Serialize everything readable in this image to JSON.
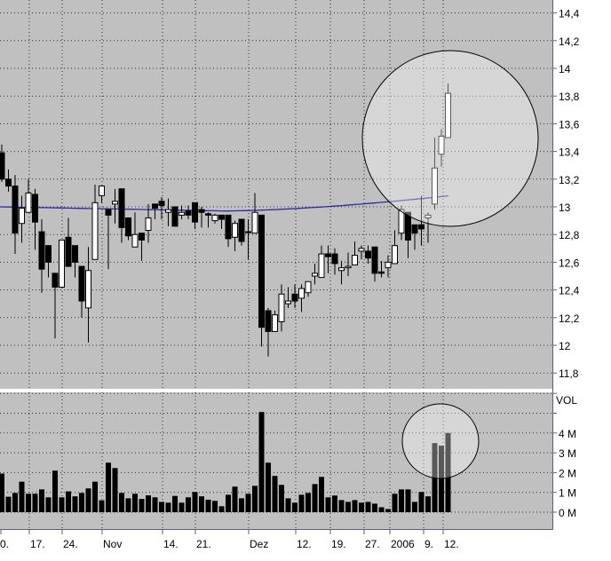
{
  "chart_data": [
    {
      "type": "candlestick",
      "price_axis": {
        "ticks": [
          "14,4",
          "14,2",
          "14",
          "13,8",
          "13,6",
          "13,4",
          "13,2",
          "13",
          "12,8",
          "12,6",
          "12,4",
          "12,2",
          "12",
          "11,8"
        ],
        "ylim": [
          11.75,
          14.5
        ]
      },
      "x_tick_labels": [
        "0.",
        "17.",
        "24.",
        "Nov",
        "14.",
        "21.",
        "Dez",
        "12.",
        "19.",
        "27.",
        "2006",
        "9.",
        "12."
      ],
      "grid": true,
      "colors": {
        "background": "#c0c0c0",
        "up": "#ffffff",
        "down": "#000000",
        "moving_average": "#2a2aa8",
        "grid": "#303030"
      },
      "ohlc": [
        [
          13.39,
          13.45,
          13.18,
          13.2
        ],
        [
          13.2,
          13.27,
          13.11,
          13.15
        ],
        [
          13.15,
          13.23,
          12.66,
          12.81
        ],
        [
          12.88,
          13.08,
          12.74,
          12.99
        ],
        [
          12.96,
          13.2,
          12.96,
          13.1
        ],
        [
          13.09,
          13.13,
          12.69,
          12.89
        ],
        [
          12.82,
          12.91,
          12.38,
          12.55
        ],
        [
          12.72,
          12.72,
          12.49,
          12.6
        ],
        [
          12.52,
          12.52,
          12.05,
          12.42
        ],
        [
          12.42,
          12.76,
          12.42,
          12.76
        ],
        [
          12.78,
          12.92,
          12.57,
          12.57
        ],
        [
          12.72,
          12.72,
          12.49,
          12.6
        ],
        [
          12.57,
          12.57,
          12.2,
          12.32
        ],
        [
          12.27,
          12.71,
          12.02,
          12.54
        ],
        [
          12.62,
          13.16,
          12.62,
          13.03
        ],
        [
          13.08,
          13.15,
          13.03,
          13.15
        ],
        [
          12.98,
          12.98,
          12.55,
          12.94
        ],
        [
          13.02,
          13.13,
          12.88,
          13.04
        ],
        [
          13.13,
          13.13,
          12.74,
          12.85
        ],
        [
          12.92,
          12.92,
          12.76,
          12.79
        ],
        [
          12.71,
          12.96,
          12.71,
          12.8
        ],
        [
          12.81,
          12.81,
          12.61,
          12.76
        ],
        [
          12.83,
          13.02,
          12.74,
          12.92
        ],
        [
          13.02,
          13.02,
          12.91,
          12.99
        ],
        [
          13.04,
          13.07,
          12.91,
          13.01
        ],
        [
          12.96,
          13.06,
          12.86,
          12.98
        ],
        [
          13.0,
          13.0,
          12.86,
          12.86
        ],
        [
          12.94,
          13.01,
          12.91,
          12.96
        ],
        [
          12.97,
          13.01,
          12.91,
          12.94
        ],
        [
          13.03,
          13.03,
          12.84,
          12.89
        ],
        [
          12.98,
          13.0,
          12.85,
          12.96
        ],
        [
          12.95,
          12.96,
          12.85,
          12.94
        ],
        [
          12.9,
          12.95,
          12.88,
          12.94
        ],
        [
          12.94,
          12.94,
          12.84,
          12.91
        ],
        [
          12.94,
          12.94,
          12.71,
          12.77
        ],
        [
          12.78,
          12.9,
          12.68,
          12.88
        ],
        [
          12.91,
          12.91,
          12.72,
          12.75
        ],
        [
          12.82,
          12.91,
          12.62,
          12.82
        ],
        [
          12.81,
          13.1,
          12.81,
          12.96
        ],
        [
          12.94,
          12.94,
          11.99,
          12.13
        ],
        [
          12.25,
          12.27,
          11.92,
          12.1
        ],
        [
          12.1,
          12.25,
          12.1,
          12.22
        ],
        [
          12.17,
          12.44,
          12.1,
          12.37
        ],
        [
          12.3,
          12.42,
          12.27,
          12.32
        ],
        [
          12.37,
          12.44,
          12.27,
          12.32
        ],
        [
          12.34,
          12.44,
          12.24,
          12.41
        ],
        [
          12.38,
          12.46,
          12.35,
          12.46
        ],
        [
          12.5,
          12.59,
          12.44,
          12.52
        ],
        [
          12.49,
          12.72,
          12.49,
          12.66
        ],
        [
          12.66,
          12.72,
          12.52,
          12.64
        ],
        [
          12.66,
          12.7,
          12.51,
          12.59
        ],
        [
          12.54,
          12.61,
          12.44,
          12.56
        ],
        [
          12.56,
          12.67,
          12.5,
          12.57
        ],
        [
          12.58,
          12.75,
          12.58,
          12.65
        ],
        [
          12.68,
          12.72,
          12.62,
          12.7
        ],
        [
          12.68,
          12.72,
          12.59,
          12.63
        ],
        [
          12.71,
          12.71,
          12.46,
          12.52
        ],
        [
          12.53,
          12.61,
          12.49,
          12.52
        ],
        [
          12.56,
          12.65,
          12.49,
          12.6
        ],
        [
          12.59,
          12.83,
          12.59,
          12.72
        ],
        [
          12.81,
          13.01,
          12.76,
          12.98
        ],
        [
          12.96,
          12.96,
          12.63,
          12.76
        ],
        [
          12.87,
          12.87,
          12.69,
          12.81
        ],
        [
          12.87,
          13.08,
          12.72,
          12.84
        ],
        [
          12.92,
          12.96,
          12.74,
          12.94
        ],
        [
          13.02,
          13.5,
          12.98,
          13.28
        ],
        [
          13.38,
          13.56,
          13.29,
          13.51
        ],
        [
          13.5,
          13.89,
          13.5,
          13.82
        ]
      ],
      "moving_average": {
        "start": 13.0,
        "min": 12.97,
        "end": 13.08
      },
      "highlight": "circle around last candles"
    },
    {
      "type": "bar",
      "label": "VOL",
      "y_tick_labels": [
        "4 M",
        "3 M",
        "2 M",
        "1 M",
        "0 M"
      ],
      "ylim": [
        -0.9,
        6.1
      ],
      "unit": "M",
      "values": [
        1.95,
        0.78,
        0.97,
        1.54,
        0.93,
        0.93,
        1.15,
        0.75,
        2.1,
        0.75,
        1.05,
        0.8,
        0.97,
        1.2,
        1.54,
        0.6,
        2.5,
        2.23,
        0.97,
        0.7,
        0.93,
        0.67,
        0.85,
        0.75,
        0.52,
        0.48,
        0.82,
        0.48,
        0.75,
        1.02,
        0.8,
        0.63,
        0.57,
        0.3,
        0.88,
        1.29,
        0.7,
        0.93,
        1.33,
        5.06,
        2.5,
        1.83,
        1.38,
        0.7,
        0.48,
        0.88,
        0.97,
        1.42,
        1.78,
        0.75,
        0.84,
        0.61,
        0.52,
        0.61,
        0.48,
        0.52,
        0.43,
        0.25,
        0.16,
        0.93,
        1.15,
        1.15,
        0.52,
        1.02,
        0.8,
        3.49,
        3.36,
        4.0
      ],
      "highlight": "circle around last bars"
    }
  ]
}
